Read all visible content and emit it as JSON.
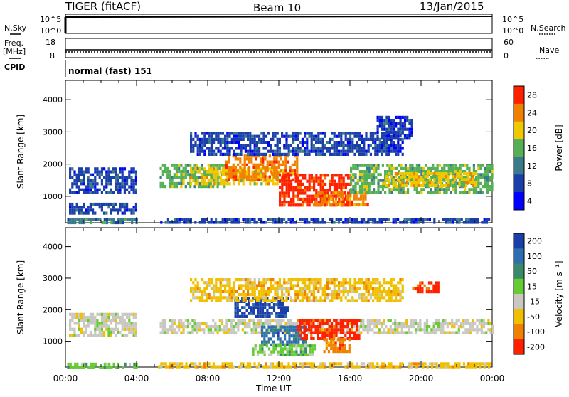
{
  "header": {
    "radar": "TIGER (fitACF)",
    "beam": "Beam 10",
    "date": "13/Jan/2015"
  },
  "top_panels": {
    "nsky_label": "N.Sky",
    "nsearch_label": "N.Search",
    "freq_label_line1": "Freq.",
    "freq_label_line2": "[MHz]",
    "nave_label": "Nave",
    "cpid_label": "CPID",
    "cpid_value": "normal (fast) 151",
    "nsky_ticks": [
      "10^5",
      "10^0"
    ],
    "nsearch_ticks": [
      "10^5",
      "10^0"
    ],
    "freq_ticks": [
      "18",
      "8"
    ],
    "nave_ticks": [
      "60",
      "0"
    ]
  },
  "chart_data": [
    {
      "type": "heatmap",
      "name": "power",
      "ylabel": "Slant Range [km]",
      "xlabel": "Time UT",
      "xticks": [
        "00:00",
        "04:00",
        "08:00",
        "12:00",
        "16:00",
        "20:00",
        "00:00"
      ],
      "yticks": [
        "1000",
        "2000",
        "3000",
        "4000"
      ],
      "ylim": [
        180,
        4600
      ],
      "xlim": [
        0,
        24
      ],
      "colorbar_label": "Power [dB]",
      "colorbar_ticks": [
        "4",
        "8",
        "12",
        "16",
        "20",
        "24",
        "28"
      ],
      "colors": [
        "#0000ff",
        "#1a3fa8",
        "#3a7a8a",
        "#55b055",
        "#f0c800",
        "#f08000",
        "#ff2000"
      ],
      "bands": [
        {
          "t0": 0.2,
          "t1": 4.0,
          "r0": 1150,
          "r1": 1900,
          "level": 1
        },
        {
          "t0": 0.2,
          "t1": 4.0,
          "r0": 500,
          "r1": 800,
          "level": 1
        },
        {
          "t0": 0.1,
          "t1": 4.0,
          "r0": 190,
          "r1": 320,
          "level": 2
        },
        {
          "t0": 5.2,
          "t1": 24.0,
          "r0": 190,
          "r1": 330,
          "level": 1
        },
        {
          "t0": 5.3,
          "t1": 9.0,
          "r0": 1300,
          "r1": 2000,
          "level": 3
        },
        {
          "t0": 7.0,
          "t1": 12.0,
          "r0": 1350,
          "r1": 1900,
          "level": 4
        },
        {
          "t0": 9.0,
          "t1": 13.0,
          "r0": 1500,
          "r1": 2300,
          "level": 5
        },
        {
          "t0": 12.0,
          "t1": 16.0,
          "r0": 700,
          "r1": 1700,
          "level": 6
        },
        {
          "t0": 14.0,
          "t1": 17.0,
          "r0": 750,
          "r1": 1150,
          "level": 5
        },
        {
          "t0": 16.0,
          "t1": 24.0,
          "r0": 1150,
          "r1": 2000,
          "level": 3
        },
        {
          "t0": 18.0,
          "t1": 23.0,
          "r0": 1350,
          "r1": 1750,
          "level": 4
        },
        {
          "t0": 7.0,
          "t1": 19.0,
          "r0": 2300,
          "r1": 3000,
          "level": 1
        },
        {
          "t0": 17.5,
          "t1": 19.5,
          "r0": 2800,
          "r1": 3500,
          "level": 1
        }
      ]
    },
    {
      "type": "heatmap",
      "name": "velocity",
      "ylabel": "Slant Range [km]",
      "xlabel": "Time UT",
      "xticks": [
        "00:00",
        "04:00",
        "08:00",
        "12:00",
        "16:00",
        "20:00",
        "00:00"
      ],
      "yticks": [
        "1000",
        "2000",
        "3000",
        "4000"
      ],
      "ylim": [
        180,
        4600
      ],
      "xlim": [
        0,
        24
      ],
      "colorbar_label": "Velocity [m s⁻¹]",
      "colorbar_ticks": [
        "200",
        "100",
        "50",
        "15",
        "-15",
        "-50",
        "-100",
        "-200"
      ],
      "colors": [
        "#1a3fa8",
        "#2f6fb0",
        "#3a8a6a",
        "#66cc33",
        "#c8c8c0",
        "#f0c000",
        "#f08000",
        "#ff2000"
      ],
      "bands": [
        {
          "t0": 0.2,
          "t1": 4.0,
          "r0": 1150,
          "r1": 1900,
          "level": 4
        },
        {
          "t0": 0.1,
          "t1": 4.0,
          "r0": 190,
          "r1": 320,
          "level": 3
        },
        {
          "t0": 5.2,
          "t1": 24.0,
          "r0": 190,
          "r1": 330,
          "level": 5
        },
        {
          "t0": 5.3,
          "t1": 24.0,
          "r0": 1250,
          "r1": 1700,
          "level": 4
        },
        {
          "t0": 9.5,
          "t1": 12.5,
          "r0": 1800,
          "r1": 2400,
          "level": 0
        },
        {
          "t0": 11.0,
          "t1": 13.5,
          "r0": 900,
          "r1": 1500,
          "level": 1
        },
        {
          "t0": 13.0,
          "t1": 16.5,
          "r0": 1100,
          "r1": 1700,
          "level": 7
        },
        {
          "t0": 14.5,
          "t1": 16.0,
          "r0": 700,
          "r1": 1100,
          "level": 6
        },
        {
          "t0": 10.5,
          "t1": 14.0,
          "r0": 600,
          "r1": 900,
          "level": 3
        },
        {
          "t0": 7.0,
          "t1": 19.0,
          "r0": 2300,
          "r1": 3000,
          "level": 5
        },
        {
          "t0": 19.5,
          "t1": 21.0,
          "r0": 2600,
          "r1": 2900,
          "level": 7
        }
      ]
    }
  ]
}
